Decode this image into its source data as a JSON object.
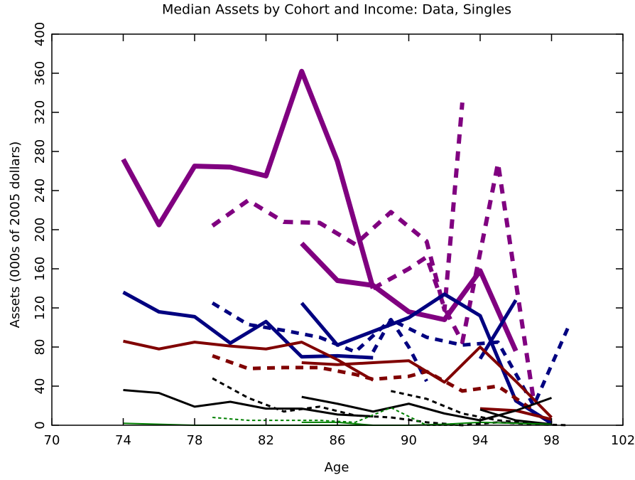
{
  "chart_data": {
    "type": "line",
    "title": "Median Assets by Cohort and Income:  Data, Singles",
    "xlabel": "Age",
    "ylabel": "Assets (000s of 2005 dollars)",
    "xlim": [
      70,
      102
    ],
    "xticks": [
      70,
      74,
      78,
      82,
      86,
      90,
      94,
      98,
      102
    ],
    "ylim": [
      0,
      400
    ],
    "yticks": [
      0,
      40,
      80,
      120,
      160,
      200,
      240,
      280,
      320,
      360,
      400
    ],
    "series": [
      {
        "color": "#800080",
        "width": 7,
        "dashed": false,
        "x": [
          74,
          76,
          78,
          80,
          82,
          84,
          86,
          88
        ],
        "values": [
          272,
          205,
          265,
          264,
          255,
          362,
          270,
          140
        ]
      },
      {
        "color": "#800080",
        "width": 7,
        "dashed": false,
        "x": [
          84,
          86,
          88,
          90,
          92,
          94,
          96
        ],
        "values": [
          186,
          148,
          143,
          116,
          108,
          158,
          76
        ]
      },
      {
        "color": "#800080",
        "width": 6,
        "dashed": true,
        "x": [
          79,
          81,
          83,
          85,
          87,
          89,
          91,
          92,
          93
        ],
        "values": [
          204,
          230,
          208,
          207,
          185,
          218,
          188,
          118,
          330
        ]
      },
      {
        "color": "#800080",
        "width": 6,
        "dashed": true,
        "x": [
          88,
          90,
          91,
          92,
          93,
          95,
          97
        ],
        "values": [
          140,
          160,
          172,
          120,
          85,
          268,
          25
        ]
      },
      {
        "color": "#000080",
        "width": 5,
        "dashed": false,
        "x": [
          74,
          76,
          78,
          80,
          82,
          84,
          86,
          88
        ],
        "values": [
          136,
          116,
          111,
          84,
          106,
          70,
          71,
          69
        ]
      },
      {
        "color": "#000080",
        "width": 5,
        "dashed": false,
        "x": [
          84,
          86,
          88,
          90,
          92,
          94,
          96,
          98
        ],
        "values": [
          125,
          82,
          96,
          110,
          134,
          112,
          25,
          2
        ]
      },
      {
        "color": "#000080",
        "width": 5,
        "dashed": false,
        "x": [
          94,
          96
        ],
        "values": [
          68,
          128
        ]
      },
      {
        "color": "#000080",
        "width": 5,
        "dashed": true,
        "x": [
          79,
          81,
          83,
          85,
          87,
          89,
          90,
          91
        ],
        "values": [
          125,
          103,
          97,
          90,
          75,
          108,
          80,
          45
        ]
      },
      {
        "color": "#000080",
        "width": 5,
        "dashed": true,
        "x": [
          88,
          89,
          91,
          93,
          95,
          97,
          99
        ],
        "values": [
          75,
          108,
          90,
          82,
          85,
          20,
          103
        ]
      },
      {
        "color": "#800000",
        "width": 4,
        "dashed": false,
        "x": [
          74,
          76,
          78,
          80,
          82,
          84,
          86,
          88
        ],
        "values": [
          86,
          78,
          85,
          81,
          78,
          85,
          67,
          46
        ]
      },
      {
        "color": "#800000",
        "width": 4,
        "dashed": false,
        "x": [
          84,
          86,
          88,
          90,
          92,
          94,
          96,
          98
        ],
        "values": [
          64,
          62,
          64,
          66,
          44,
          80,
          45,
          8
        ]
      },
      {
        "color": "#800000",
        "width": 4,
        "dashed": false,
        "x": [
          94,
          96,
          98
        ],
        "values": [
          17,
          15,
          6
        ]
      },
      {
        "color": "#800000",
        "width": 5,
        "dashed": true,
        "x": [
          79,
          81,
          83,
          85,
          87,
          88,
          90,
          91,
          93,
          95,
          97
        ],
        "values": [
          71,
          58,
          59,
          59,
          52,
          47,
          50,
          55,
          35,
          40,
          15
        ]
      },
      {
        "color": "#000000",
        "width": 3,
        "dashed": false,
        "x": [
          74,
          76,
          78,
          80,
          82,
          84,
          86,
          88
        ],
        "values": [
          36,
          33,
          19,
          24,
          17,
          17,
          11,
          9
        ]
      },
      {
        "color": "#000000",
        "width": 3,
        "dashed": false,
        "x": [
          84,
          86,
          88,
          90,
          92,
          94,
          96,
          98
        ],
        "values": [
          29,
          22,
          14,
          22,
          12,
          5,
          15,
          28
        ]
      },
      {
        "color": "#000000",
        "width": 3,
        "dashed": false,
        "x": [
          94,
          96,
          98
        ],
        "values": [
          16,
          5,
          1
        ]
      },
      {
        "color": "#000000",
        "width": 3,
        "dashed": true,
        "x": [
          79,
          81,
          83,
          85,
          87,
          89,
          91,
          93,
          95,
          97,
          99
        ],
        "values": [
          48,
          28,
          14,
          19,
          10,
          8,
          3,
          0,
          3,
          1,
          0
        ]
      },
      {
        "color": "#000000",
        "width": 3,
        "dashed": true,
        "x": [
          89,
          91,
          93,
          95,
          97
        ],
        "values": [
          35,
          27,
          12,
          5,
          2
        ]
      },
      {
        "color": "#008000",
        "width": 2,
        "dashed": false,
        "x": [
          74,
          76,
          78,
          80,
          82,
          84,
          86,
          88
        ],
        "values": [
          2,
          1,
          0,
          0,
          0,
          0,
          0,
          0
        ]
      },
      {
        "color": "#008000",
        "width": 2,
        "dashed": false,
        "x": [
          84,
          86,
          88,
          90,
          92,
          94,
          96,
          98
        ],
        "values": [
          3,
          3,
          0,
          0,
          1,
          3,
          2,
          1
        ]
      },
      {
        "color": "#008000",
        "width": 2,
        "dashed": true,
        "x": [
          79,
          81,
          83,
          85,
          87,
          89,
          91,
          93
        ],
        "values": [
          8,
          5,
          5,
          5,
          3,
          18,
          0,
          0
        ]
      }
    ]
  }
}
